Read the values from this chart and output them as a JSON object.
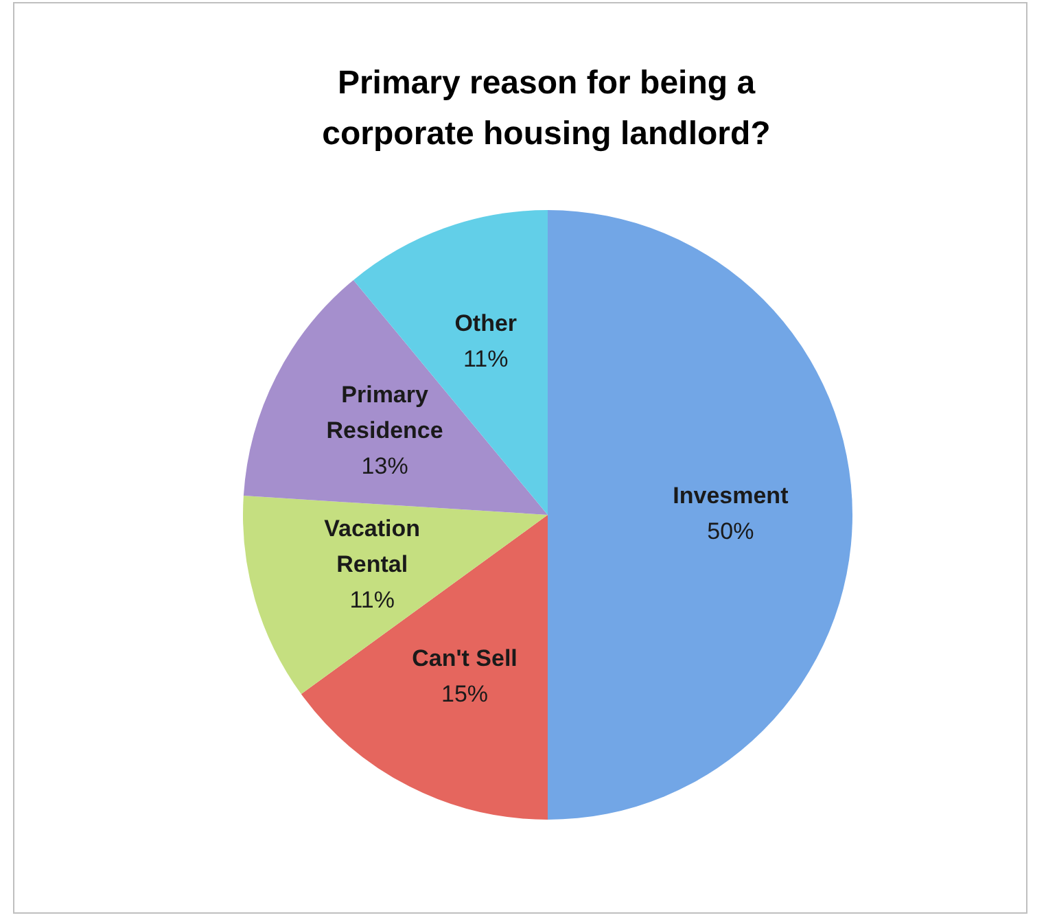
{
  "chart_data": {
    "type": "pie",
    "title": "Primary reason for being a\ncorporate housing landlord?",
    "categories": [
      "Invesment",
      "Can't Sell",
      "Vacation Rental",
      "Primary Residence",
      "Other"
    ],
    "values": [
      50,
      15,
      11,
      13,
      11
    ],
    "colors": [
      "#72a6e6",
      "#e5665e",
      "#c5df80",
      "#a58fcd",
      "#62cfe8"
    ],
    "value_labels": [
      "50%",
      "15%",
      "11%",
      "13%",
      "11%"
    ],
    "legend": false
  }
}
